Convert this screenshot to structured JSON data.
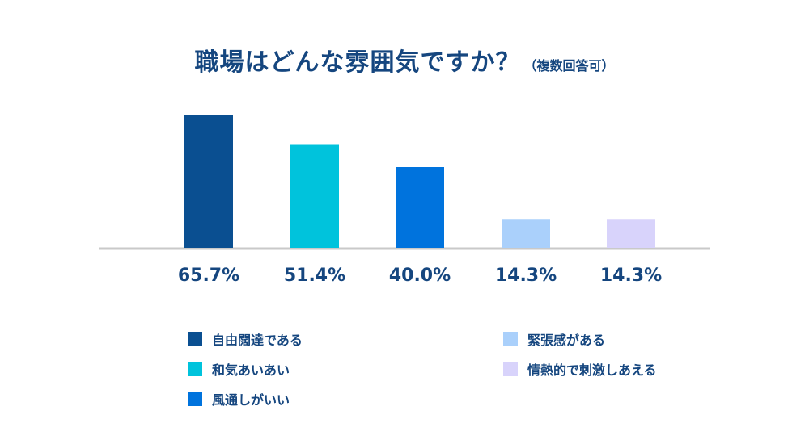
{
  "chart_data": {
    "type": "bar",
    "title": "職場はどんな雰囲気ですか？",
    "subtitle": "（複数回答可）",
    "categories": [
      "自由闊達である",
      "和気あいあい",
      "風通しがいい",
      "緊張感がある",
      "情熱的で刺激しあえる"
    ],
    "values": [
      65.7,
      51.4,
      40.0,
      14.3,
      14.3
    ],
    "value_labels": [
      "65.7%",
      "51.4%",
      "40.0%",
      "14.3%",
      "14.3%"
    ],
    "colors": [
      "#0a4f91",
      "#00c3dc",
      "#0073dd",
      "#aad0fb",
      "#d8d3fb"
    ],
    "ylim": [
      0,
      66
    ],
    "legend_position": "bottom",
    "grid": false
  }
}
